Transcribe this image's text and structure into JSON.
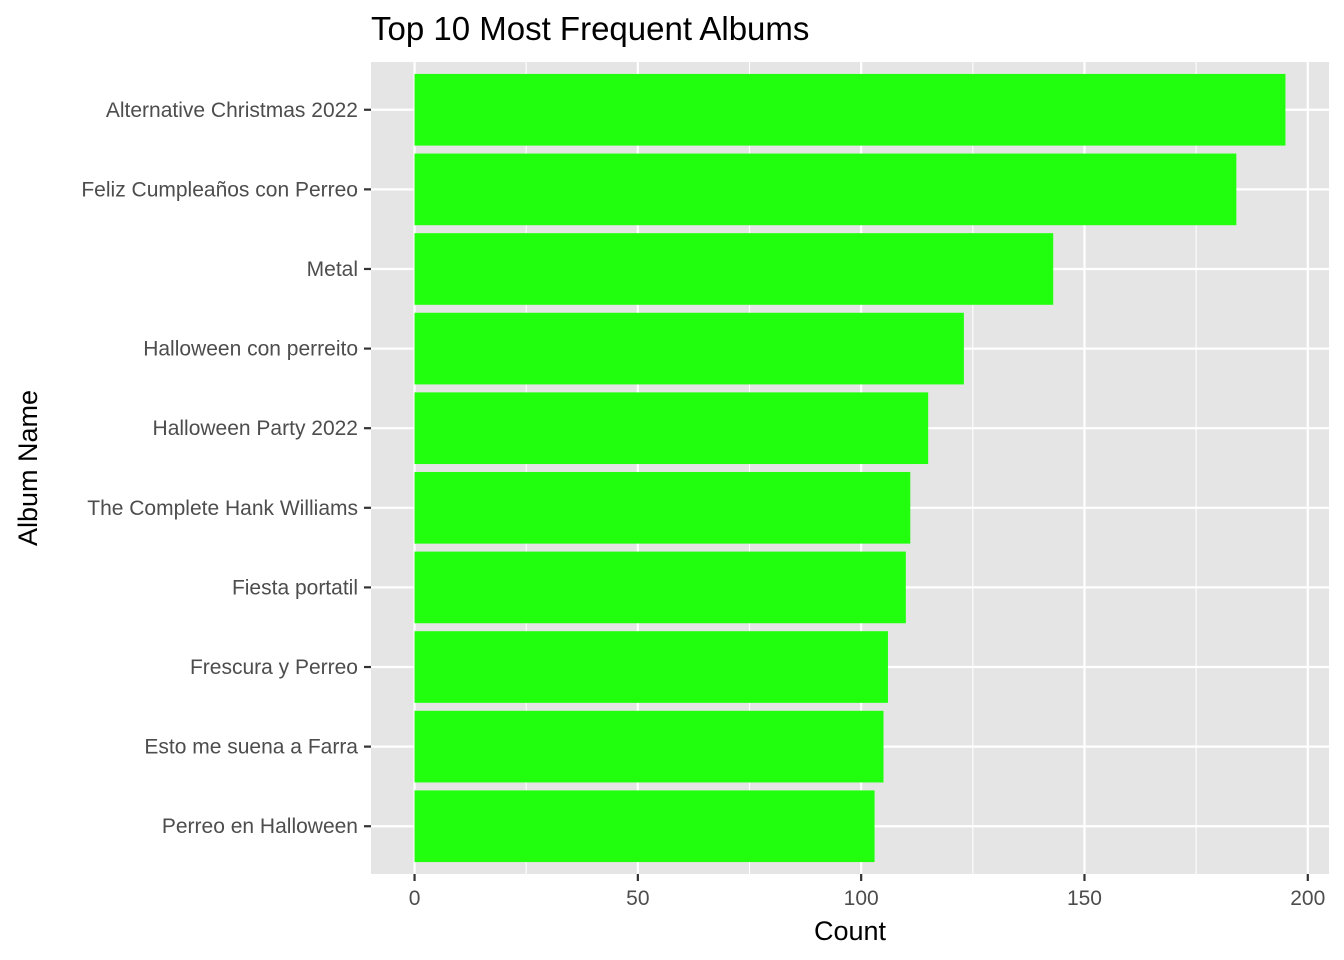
{
  "chart_data": {
    "type": "bar",
    "orientation": "horizontal",
    "title": "Top 10 Most Frequent Albums",
    "xlabel": "Count",
    "ylabel": "Album Name",
    "categories": [
      "Alternative Christmas 2022",
      "Feliz Cumpleaños con Perreo",
      "Metal",
      "Halloween con perreito",
      "Halloween Party 2022",
      "The Complete Hank Williams",
      "Fiesta portatil",
      "Frescura y Perreo",
      "Esto me suena a Farra",
      "Perreo en Halloween"
    ],
    "values": [
      195,
      184,
      143,
      123,
      115,
      111,
      110,
      106,
      105,
      103
    ],
    "xlim": [
      -9.75,
      204.75
    ],
    "xticks": [
      0,
      50,
      100,
      150,
      200
    ],
    "xtick_labels": [
      "0",
      "50",
      "100",
      "150",
      "200"
    ],
    "grid": true,
    "bar_color": "#22ff0e",
    "panel_background": "#e5e5e5",
    "grid_color": "#ffffff"
  }
}
